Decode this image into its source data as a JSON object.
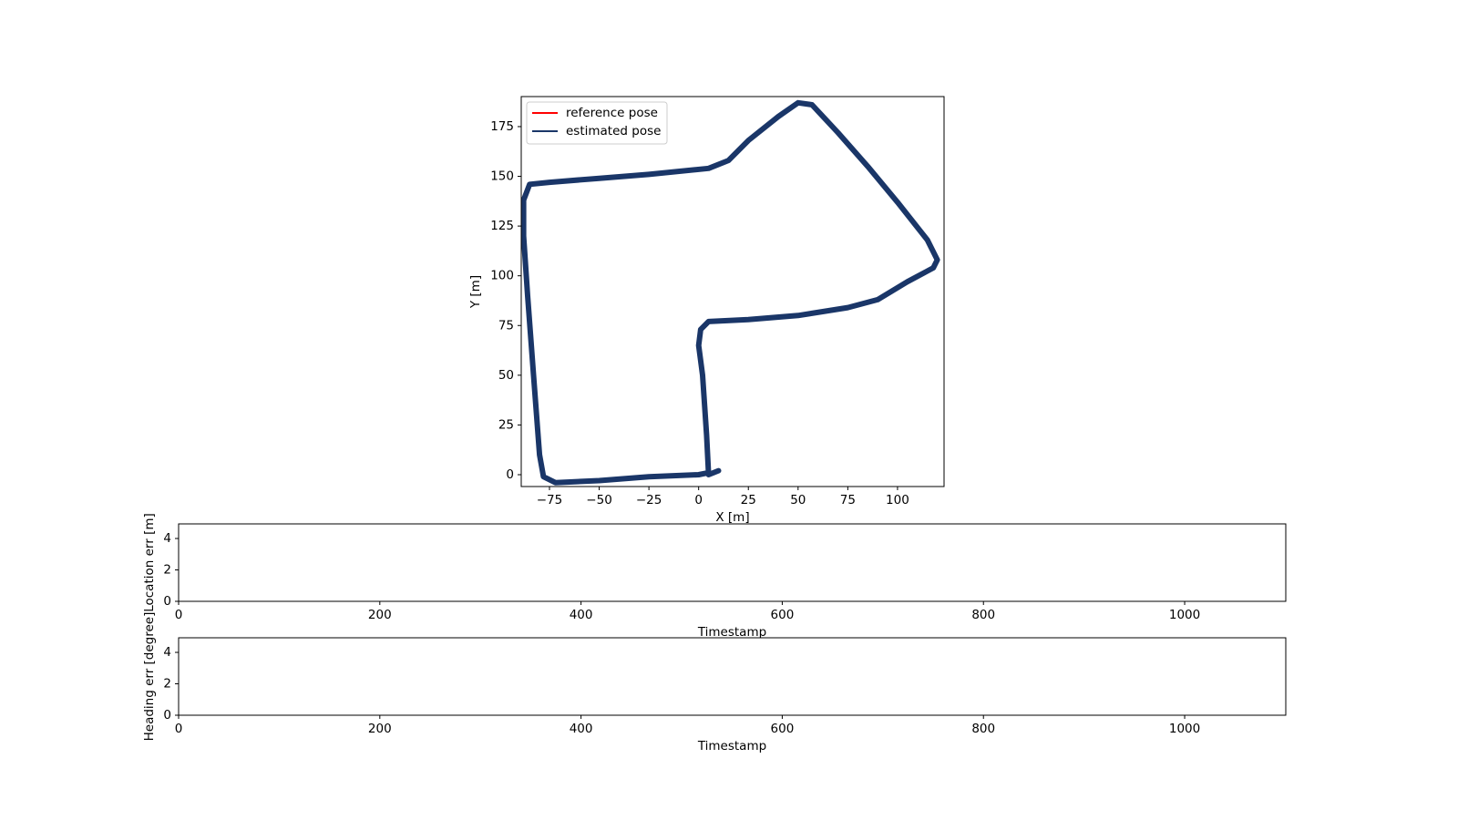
{
  "chart_data": [
    {
      "type": "line",
      "xlabel": "X [m]",
      "ylabel": "Y [m]",
      "x": [
        10,
        5,
        4,
        2,
        0,
        1,
        5,
        25,
        50,
        75,
        90,
        105,
        118,
        120,
        115,
        100,
        85,
        70,
        57,
        50,
        40,
        25,
        15,
        5,
        -25,
        -50,
        -75,
        -85,
        -88,
        -88,
        -86,
        -83,
        -80,
        -78,
        -72,
        -50,
        -25,
        0,
        5
      ],
      "series": [
        {
          "name": "reference pose",
          "color": "#ff0000",
          "values": [
            2,
            0,
            20,
            50,
            65,
            73,
            77,
            78,
            80,
            84,
            88,
            97,
            104,
            108,
            118,
            137,
            155,
            172,
            186,
            187,
            180,
            168,
            158,
            154,
            151,
            149,
            147,
            146,
            138,
            120,
            90,
            50,
            10,
            -1,
            -4,
            -3,
            -1,
            0,
            1
          ]
        },
        {
          "name": "estimated pose",
          "color": "#1a3668",
          "values": [
            2,
            0,
            20,
            50,
            65,
            73,
            77,
            78,
            80,
            84,
            88,
            97,
            104,
            108,
            118,
            137,
            155,
            172,
            186,
            187,
            180,
            168,
            158,
            154,
            151,
            149,
            147,
            146,
            138,
            120,
            90,
            50,
            10,
            -1,
            -4,
            -3,
            -1,
            0,
            1
          ]
        }
      ],
      "xlim": [
        -89.2,
        123.4
      ],
      "xticks": [
        {
          "value": -75,
          "label": "−75"
        },
        {
          "value": -50,
          "label": "−50"
        },
        {
          "value": -25,
          "label": "−25"
        },
        0,
        25,
        50,
        75,
        100
      ],
      "ylim": [
        -5.96,
        190.1
      ],
      "yticks": [
        0,
        25,
        50,
        75,
        100,
        125,
        150,
        175
      ],
      "legend": "upper left"
    },
    {
      "type": "line",
      "xlabel": "Timestamp",
      "ylabel": "Location err [m]",
      "xlim": [
        0,
        1100.5
      ],
      "xticks": [
        0,
        200,
        400,
        600,
        800,
        1000
      ],
      "ylim": [
        0,
        4.93
      ],
      "yticks": [
        0,
        2,
        4
      ]
    },
    {
      "type": "line",
      "xlabel": "Timestamp",
      "ylabel": "Heading err [degree]",
      "xlim": [
        0,
        1100.5
      ],
      "xticks": [
        0,
        200,
        400,
        600,
        800,
        1000
      ],
      "ylim": [
        0,
        4.93
      ],
      "yticks": [
        0,
        2,
        4
      ]
    }
  ]
}
